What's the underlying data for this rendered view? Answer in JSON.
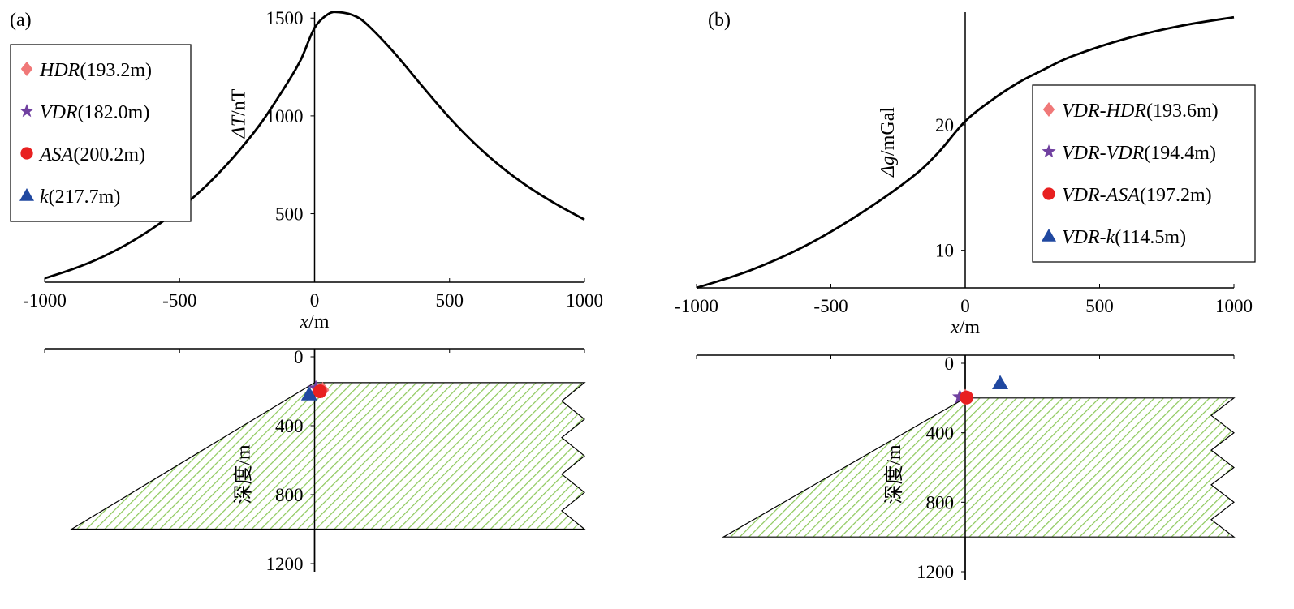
{
  "chart_data": [
    {
      "panel_label": "(a)",
      "type": "line",
      "ylabel_symbol": "ΔT",
      "ylabel_unit": "/nT",
      "xlabel_symbol": "x",
      "xlabel_unit": "/m",
      "xlim": [
        -1000,
        1000
      ],
      "x_ticks": [
        -1000,
        -500,
        0,
        500,
        1000
      ],
      "y_ticks": [
        500,
        1000,
        1500
      ],
      "ylim": [
        150,
        1530
      ],
      "series": [
        {
          "x": [
            -1000,
            -900,
            -800,
            -700,
            -600,
            -500,
            -400,
            -300,
            -200,
            -100,
            -50,
            0,
            50,
            90,
            150,
            200,
            300,
            400,
            500,
            600,
            700,
            800,
            900,
            1000
          ],
          "values": [
            170,
            215,
            270,
            340,
            425,
            525,
            645,
            790,
            960,
            1170,
            1290,
            1450,
            1520,
            1530,
            1510,
            1460,
            1315,
            1150,
            990,
            850,
            730,
            630,
            545,
            470
          ]
        }
      ],
      "legend": [
        {
          "marker": "diamond",
          "color": "#f07878",
          "method": "HDR",
          "value": "(193.2m)"
        },
        {
          "marker": "star",
          "color": "#7040a0",
          "method": "VDR",
          "value": "(182.0m)"
        },
        {
          "marker": "circle",
          "color": "#e82020",
          "method": "ASA",
          "value": "(200.2m)"
        },
        {
          "marker": "triangle",
          "color": "#2048a0",
          "method": "k",
          "value": "(217.7m)"
        }
      ],
      "section": {
        "depth_label": "深度/m",
        "depth_ticks": [
          0,
          400,
          800,
          1200
        ],
        "depth_range": [
          0,
          1200
        ],
        "top_depth": 150,
        "bottom_depth": 1000,
        "bottom_left_x": -900,
        "top_left_x": 0,
        "right_x": 1000,
        "markers": [
          {
            "marker": "diamond",
            "color": "#f07878",
            "x": 30,
            "depth": 193.2
          },
          {
            "marker": "star",
            "color": "#7040a0",
            "x": 5,
            "depth": 182.0
          },
          {
            "marker": "circle",
            "color": "#e82020",
            "x": 20,
            "depth": 200.2
          },
          {
            "marker": "triangle",
            "color": "#2048a0",
            "x": -20,
            "depth": 217.7
          }
        ]
      }
    },
    {
      "panel_label": "(b)",
      "type": "line",
      "ylabel_symbol": "Δg",
      "ylabel_unit": "/mGal",
      "xlabel_symbol": "x",
      "xlabel_unit": "/m",
      "xlim": [
        -1000,
        1000
      ],
      "x_ticks": [
        -1000,
        -500,
        0,
        500,
        1000
      ],
      "y_ticks": [
        10,
        20
      ],
      "ylim": [
        7,
        29
      ],
      "series": [
        {
          "x": [
            -1000,
            -800,
            -600,
            -400,
            -200,
            -100,
            0,
            100,
            200,
            300,
            400,
            600,
            800,
            1000
          ],
          "values": [
            7.0,
            8.4,
            10.3,
            12.8,
            15.8,
            17.8,
            20.3,
            22.0,
            23.4,
            24.5,
            25.5,
            26.9,
            27.9,
            28.6
          ]
        }
      ],
      "legend": [
        {
          "marker": "diamond",
          "color": "#f07878",
          "method": "VDR-HDR",
          "value": "(193.6m)"
        },
        {
          "marker": "star",
          "color": "#7040a0",
          "method": "VDR-VDR",
          "value": "(194.4m)"
        },
        {
          "marker": "circle",
          "color": "#e82020",
          "method": "VDR-ASA",
          "value": "(197.2m)"
        },
        {
          "marker": "triangle",
          "color": "#2048a0",
          "method": "VDR-k",
          "value": "(114.5m)"
        }
      ],
      "section": {
        "depth_label": "深度/m",
        "depth_ticks": [
          0,
          400,
          800,
          1200
        ],
        "depth_range": [
          0,
          1200
        ],
        "top_depth": 200,
        "bottom_depth": 1000,
        "bottom_left_x": -900,
        "top_left_x": 0,
        "right_x": 1000,
        "markers": [
          {
            "marker": "diamond",
            "color": "#f07878",
            "x": 0,
            "depth": 193.6
          },
          {
            "marker": "star",
            "color": "#7040a0",
            "x": -20,
            "depth": 194.4
          },
          {
            "marker": "circle",
            "color": "#e82020",
            "x": 5,
            "depth": 197.2
          },
          {
            "marker": "triangle",
            "color": "#2048a0",
            "x": 130,
            "depth": 114.5
          }
        ]
      }
    }
  ]
}
